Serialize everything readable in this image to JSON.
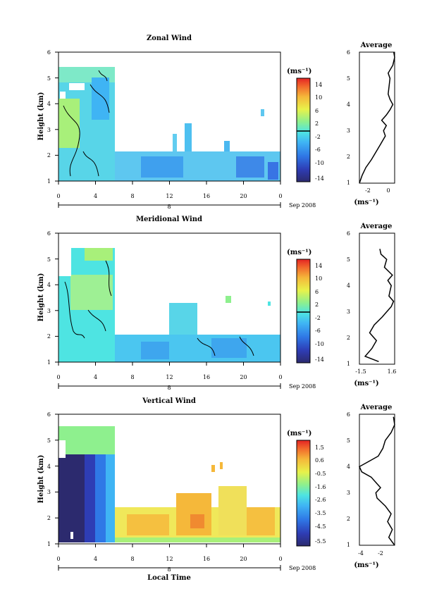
{
  "figure": {
    "date_label": "Sep 2008",
    "time_label": "Local Time",
    "day_marker": "8",
    "unit_label": "(ms⁻¹)",
    "height_label": "Height (km)",
    "avg_title": "Average"
  },
  "chart_data": [
    {
      "type": "heatmap",
      "title": "Zonal Wind",
      "xlabel": "",
      "ylabel": "Height (km)",
      "xlim": [
        0,
        24
      ],
      "ylim": [
        1,
        6
      ],
      "x_ticks": [
        "0",
        "4",
        "8",
        "12",
        "16",
        "20",
        "0"
      ],
      "y_ticks": [
        "1",
        "2",
        "3",
        "4",
        "5",
        "6"
      ],
      "colorbar": {
        "unit": "(ms⁻¹)",
        "min": -16,
        "max": 16,
        "labels": [
          "14",
          "10",
          "6",
          "2",
          "-2",
          "-6",
          "-10",
          "-14"
        ]
      },
      "data_regions": [
        {
          "x": [
            0,
            6
          ],
          "y": [
            1,
            5.4
          ],
          "value": -2
        },
        {
          "x": [
            0,
            2
          ],
          "y": [
            2.4,
            4.4
          ],
          "value": 1
        },
        {
          "x": [
            0,
            6
          ],
          "y": [
            4.6,
            5.4
          ],
          "value": -1
        },
        {
          "x": [
            6,
            24
          ],
          "y": [
            1.1,
            2.3
          ],
          "value": -6
        },
        {
          "x": [
            13,
            14
          ],
          "y": [
            2.3,
            3.3
          ],
          "value": -4
        },
        {
          "x": [
            22,
            24
          ],
          "y": [
            1.1,
            2.2
          ],
          "value": -8
        }
      ],
      "average_profile": {
        "title": "Average",
        "xlabel": "(ms⁻¹)",
        "x_ticks": [
          "-2",
          "0"
        ],
        "xlim": [
          -3.3,
          0.5
        ],
        "height": [
          1.0,
          1.3,
          1.6,
          1.9,
          2.2,
          2.5,
          2.8,
          3.0,
          3.2,
          3.4,
          3.6,
          3.8,
          4.0,
          4.2,
          4.4,
          4.7,
          5.0,
          5.2,
          5.5,
          5.8,
          6.0
        ],
        "value": [
          -3.3,
          -3.0,
          -2.6,
          -2.0,
          -1.5,
          -1.0,
          -0.5,
          -0.7,
          -0.4,
          -0.9,
          -0.4,
          0.0,
          0.3,
          0.0,
          -0.2,
          -0.1,
          0.0,
          -0.2,
          0.3,
          0.5,
          0.4
        ]
      }
    },
    {
      "type": "heatmap",
      "title": "Meridional Wind",
      "xlabel": "",
      "ylabel": "Height (km)",
      "xlim": [
        0,
        24
      ],
      "ylim": [
        1,
        6
      ],
      "x_ticks": [
        "0",
        "4",
        "8",
        "12",
        "16",
        "20",
        "0"
      ],
      "y_ticks": [
        "1",
        "2",
        "3",
        "4",
        "5",
        "6"
      ],
      "colorbar": {
        "unit": "(ms⁻¹)",
        "min": -16,
        "max": 16,
        "labels": [
          "14",
          "10",
          "6",
          "2",
          "-2",
          "-6",
          "-10",
          "-14"
        ]
      },
      "data_regions": [
        {
          "x": [
            0,
            6
          ],
          "y": [
            1,
            5.4
          ],
          "value": -1
        },
        {
          "x": [
            1,
            6
          ],
          "y": [
            3.6,
            5.0
          ],
          "value": 1
        },
        {
          "x": [
            6,
            24
          ],
          "y": [
            1.1,
            2.0
          ],
          "value": -3
        },
        {
          "x": [
            12,
            17
          ],
          "y": [
            2.0,
            3.1
          ],
          "value": -2
        }
      ],
      "average_profile": {
        "title": "Average",
        "xlabel": "(ms⁻¹)",
        "x_ticks": [
          "-1.5",
          "1.6"
        ],
        "xlim": [
          -1.5,
          1.6
        ],
        "height": [
          1.1,
          1.3,
          1.6,
          1.9,
          2.2,
          2.5,
          2.8,
          3.0,
          3.2,
          3.4,
          3.6,
          3.8,
          4.0,
          4.2,
          4.4,
          4.7,
          5.0,
          5.2,
          5.4
        ],
        "value": [
          0.2,
          -1.0,
          -0.4,
          0.0,
          -0.6,
          -0.2,
          0.5,
          0.9,
          1.3,
          1.5,
          1.1,
          1.2,
          1.3,
          1.0,
          1.4,
          0.7,
          0.9,
          0.4,
          0.3
        ]
      }
    },
    {
      "type": "heatmap",
      "title": "Vertical Wind",
      "xlabel": "Local Time",
      "ylabel": "Height (km)",
      "xlim": [
        0,
        24
      ],
      "ylim": [
        1,
        6
      ],
      "x_ticks": [
        "0",
        "4",
        "8",
        "12",
        "16",
        "20",
        "0"
      ],
      "y_ticks": [
        "1",
        "2",
        "3",
        "4",
        "5",
        "6"
      ],
      "colorbar": {
        "unit": "(ms⁻¹)",
        "min": -6.0,
        "max": 2.0,
        "labels": [
          "1.5",
          "0.6",
          "-0.5",
          "-1.6",
          "-2.6",
          "-3.5",
          "-4.5",
          "-5.5"
        ]
      },
      "data_regions": [
        {
          "x": [
            0,
            4
          ],
          "y": [
            1.2,
            4.3
          ],
          "value": -5.8
        },
        {
          "x": [
            4,
            6
          ],
          "y": [
            1.2,
            5.0
          ],
          "value": -3.0
        },
        {
          "x": [
            0,
            6
          ],
          "y": [
            4.3,
            5.5
          ],
          "value": -1.5
        },
        {
          "x": [
            4,
            24
          ],
          "y": [
            1.2,
            2.6
          ],
          "value": 0.0
        },
        {
          "x": [
            12,
            20
          ],
          "y": [
            1.2,
            3.5
          ],
          "value": 0.4
        }
      ],
      "average_profile": {
        "title": "Average",
        "xlabel": "(ms⁻¹)",
        "x_ticks": [
          "-4",
          "-2"
        ],
        "xlim": [
          -4.0,
          -1.0
        ],
        "height": [
          1.0,
          1.3,
          1.6,
          1.9,
          2.2,
          2.5,
          2.8,
          3.0,
          3.2,
          3.4,
          3.6,
          3.8,
          4.0,
          4.2,
          4.4,
          4.7,
          5.0,
          5.3,
          5.6,
          5.9
        ],
        "value": [
          -1.0,
          -1.5,
          -1.2,
          -1.6,
          -1.3,
          -1.8,
          -2.5,
          -2.6,
          -2.2,
          -2.6,
          -3.0,
          -3.8,
          -4.0,
          -3.2,
          -2.4,
          -2.0,
          -1.8,
          -1.3,
          -1.0,
          -1.1
        ]
      }
    }
  ]
}
